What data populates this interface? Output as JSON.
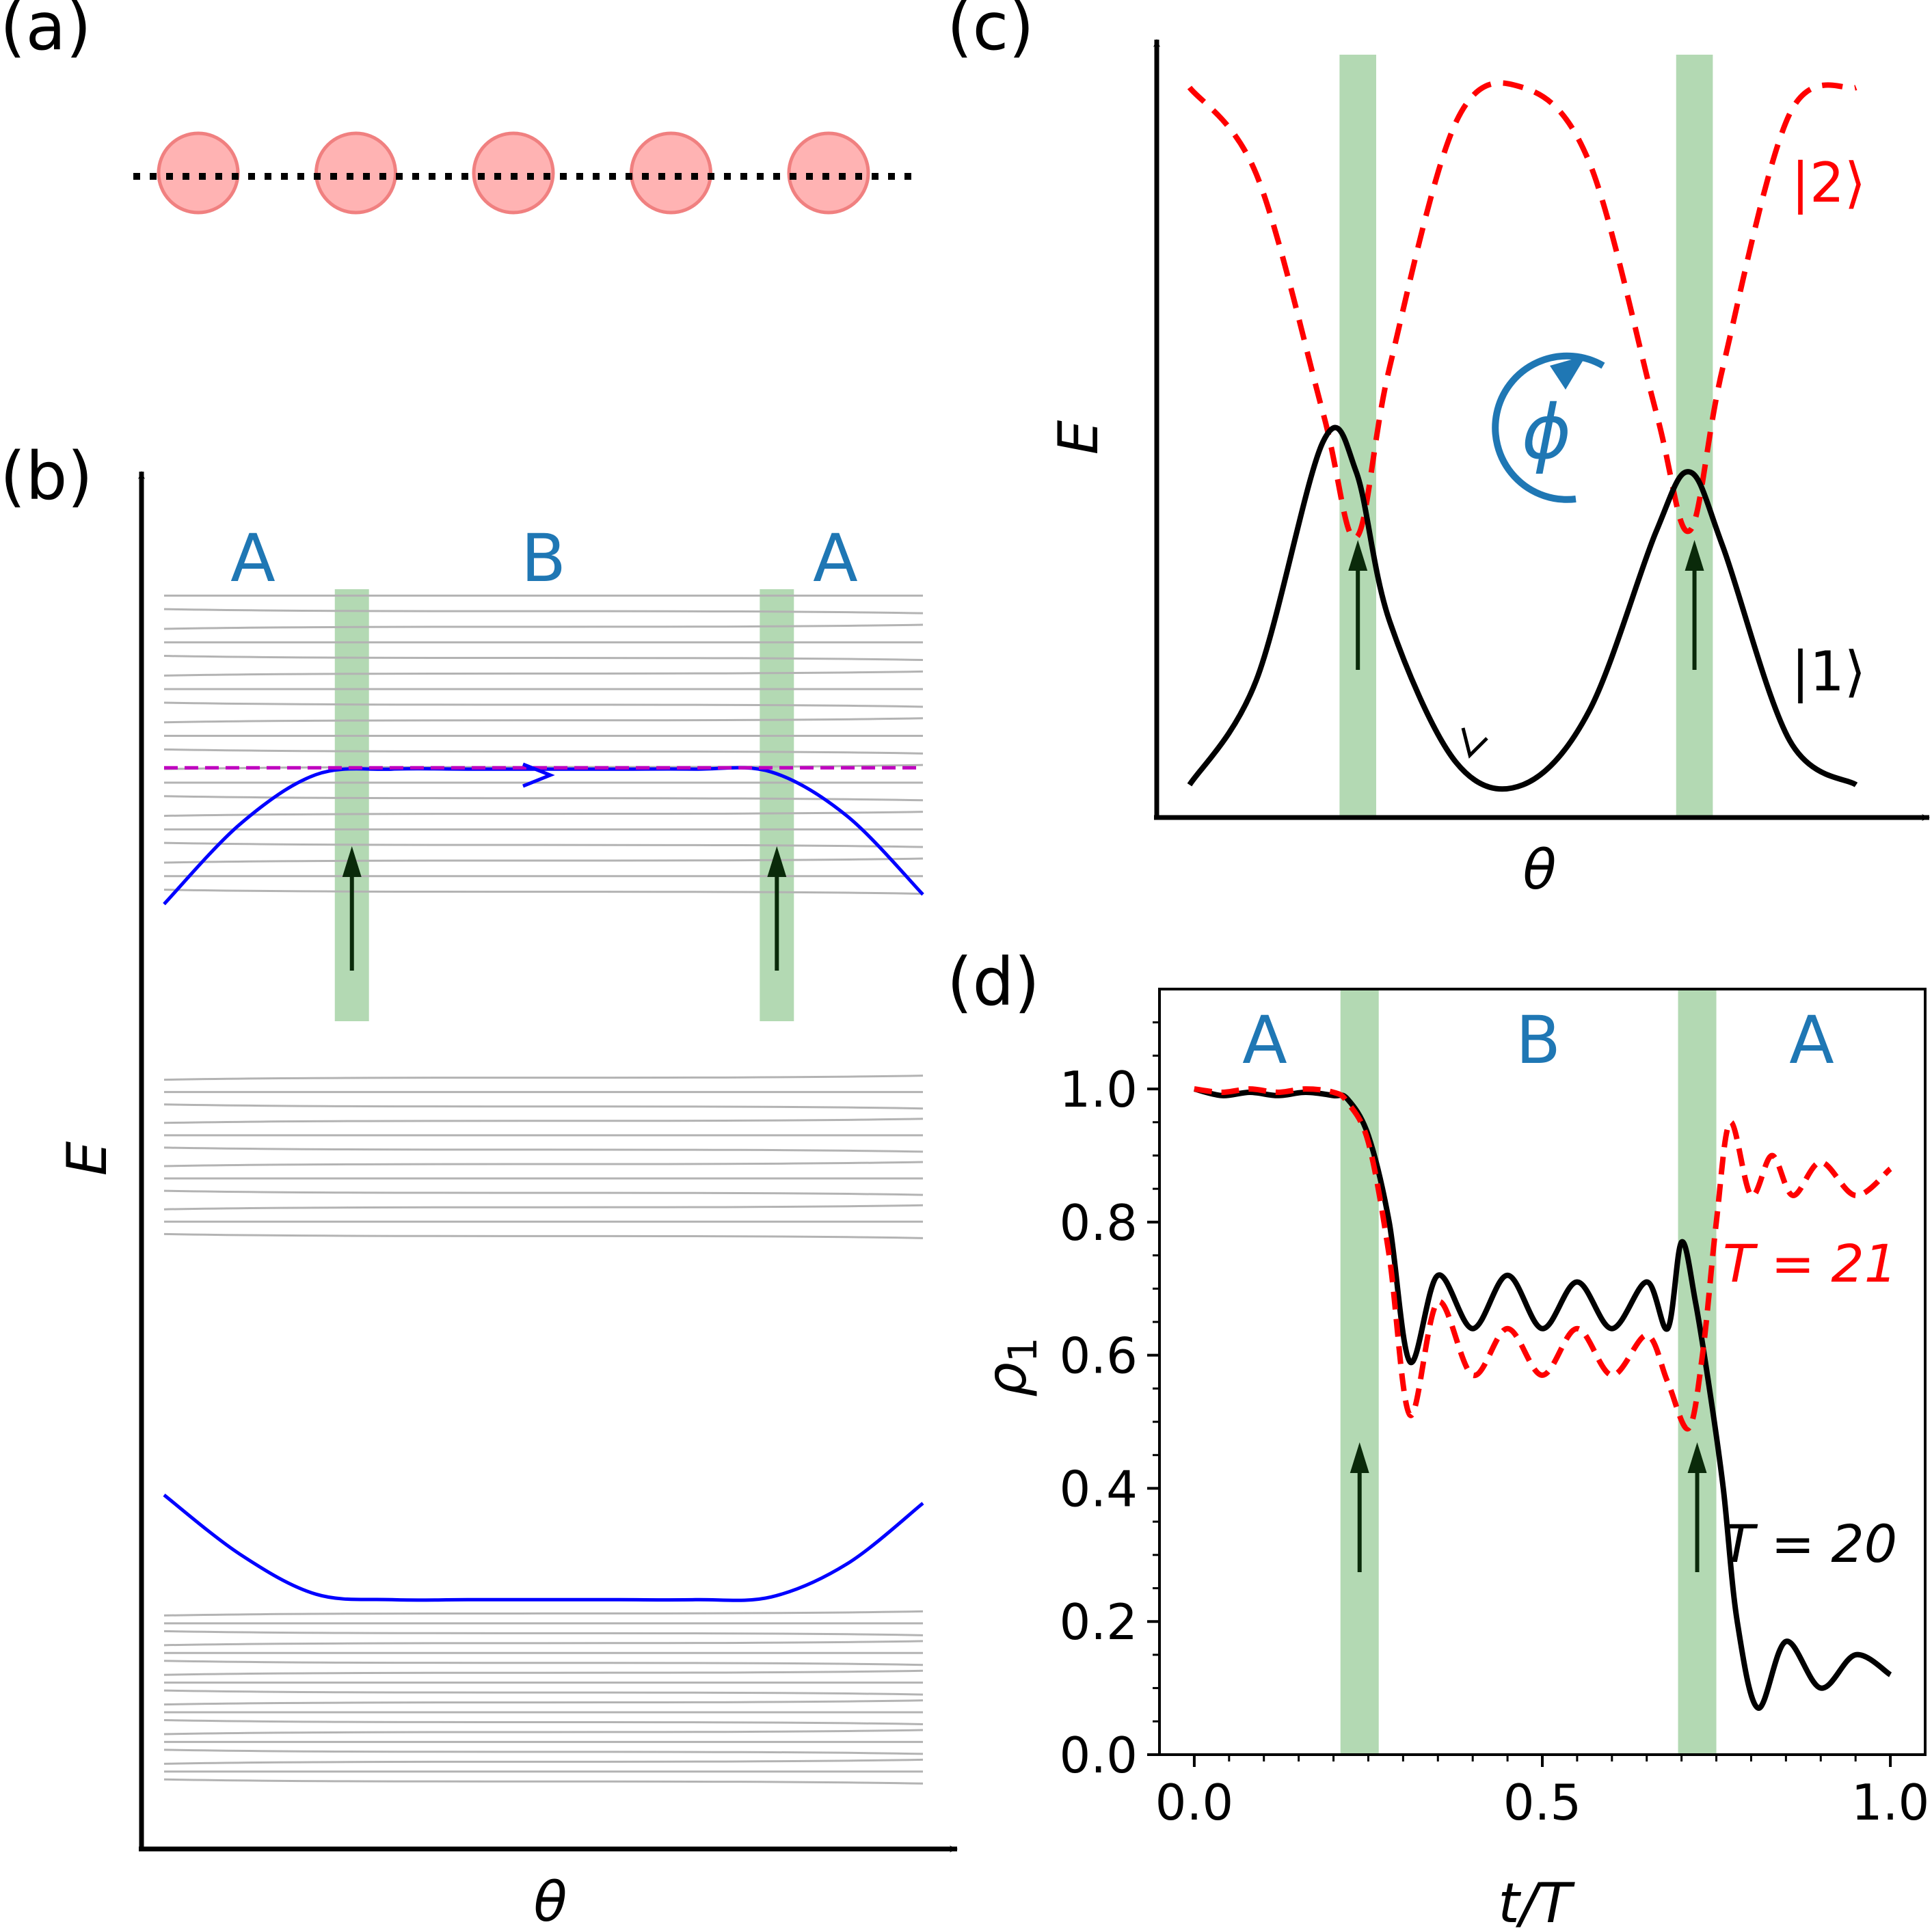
{
  "colors": {
    "blue": "#1f77b4",
    "red": "#ff0000",
    "black": "#000000",
    "green": "#b3d9b3",
    "gray": "#b3b3b3",
    "line_blue": "#0000ff",
    "magenta": "#bf00bf",
    "atom": "#ffb3b3",
    "atom_edge": "#f08080",
    "arrow_dark": "#0a2a0a"
  },
  "panels": {
    "a": {
      "label": "(a)"
    },
    "b": {
      "label": "(b)",
      "ylabel": "E",
      "xlabel": "θ",
      "region_labels": [
        "A",
        "B",
        "A"
      ]
    },
    "c": {
      "label": "(c)",
      "ylabel": "E",
      "xlabel": "θ",
      "state_upper": "|2⟩",
      "state_lower": "|1⟩",
      "phase_symbol": "ϕ"
    },
    "d": {
      "label": "(d)",
      "ylabel": "ρ",
      "ylabel_sub": "1",
      "xlabel": "t/T",
      "region_labels": [
        "A",
        "B",
        "A"
      ],
      "legend_red": "T = 21",
      "legend_black": "T = 20"
    }
  },
  "chart_data": [
    {
      "panel": "a",
      "type": "scatter",
      "title": "five-site chain",
      "points": [
        1,
        2,
        3,
        4,
        5
      ]
    },
    {
      "panel": "b",
      "type": "line",
      "xlabel": "θ",
      "ylabel": "E",
      "xlim": [
        0,
        1
      ],
      "ylim": [
        0,
        1
      ],
      "bands": [
        {
          "name": "upper gray levels",
          "count": 20,
          "range": [
            0.695,
            0.91
          ]
        },
        {
          "name": "middle gray levels",
          "count": 12,
          "range": [
            0.445,
            0.56
          ]
        },
        {
          "name": "lower gray levels",
          "count": 18,
          "range": [
            0.049,
            0.171
          ]
        }
      ],
      "series": [
        {
          "name": "upper blue",
          "x": [
            0,
            0.1,
            0.2,
            0.3,
            0.4,
            0.5,
            0.6,
            0.7,
            0.8,
            0.9,
            1.0
          ],
          "y": [
            0.686,
            0.744,
            0.78,
            0.784,
            0.784,
            0.784,
            0.784,
            0.784,
            0.782,
            0.75,
            0.693
          ]
        },
        {
          "name": "lower blue",
          "x": [
            0,
            0.1,
            0.2,
            0.3,
            0.4,
            0.5,
            0.6,
            0.7,
            0.8,
            0.9,
            1.0
          ],
          "y": [
            0.257,
            0.214,
            0.185,
            0.181,
            0.181,
            0.181,
            0.181,
            0.181,
            0.183,
            0.207,
            0.251
          ]
        },
        {
          "name": "magenta dashed",
          "x": [
            0,
            1
          ],
          "y": [
            0.785,
            0.785
          ]
        }
      ],
      "shaded_intervals": [
        [
          0.225,
          0.27
        ],
        [
          0.785,
          0.83
        ]
      ],
      "annotations": [
        "A",
        "B",
        "A"
      ]
    },
    {
      "panel": "c",
      "type": "line",
      "xlabel": "θ",
      "ylabel": "E",
      "xlim": [
        0,
        1
      ],
      "ylim": [
        0,
        1
      ],
      "series": [
        {
          "name": "|2⟩",
          "style": "dashed",
          "x": [
            0,
            0.1,
            0.2,
            0.25,
            0.3,
            0.4,
            0.5,
            0.6,
            0.7,
            0.75,
            0.8,
            0.9,
            1.0
          ],
          "y": [
            0.956,
            0.84,
            0.52,
            0.352,
            0.58,
            0.91,
            0.956,
            0.855,
            0.52,
            0.361,
            0.58,
            0.92,
            0.956
          ]
        },
        {
          "name": "|1⟩",
          "style": "solid",
          "x": [
            0,
            0.1,
            0.2,
            0.25,
            0.3,
            0.4,
            0.5,
            0.6,
            0.7,
            0.75,
            0.8,
            0.9,
            1.0
          ],
          "y": [
            0.02,
            0.16,
            0.48,
            0.44,
            0.24,
            0.05,
            0.02,
            0.12,
            0.36,
            0.44,
            0.34,
            0.08,
            0.02
          ]
        }
      ],
      "shaded_intervals": [
        [
          0.225,
          0.28
        ],
        [
          0.73,
          0.785
        ]
      ]
    },
    {
      "panel": "d",
      "type": "line",
      "xlabel": "t/T",
      "ylabel": "ρ1",
      "xlim": [
        -0.05,
        1.05
      ],
      "ylim": [
        0,
        1.15
      ],
      "xticks": [
        0.0,
        0.5,
        1.0
      ],
      "xtick_labels": [
        "0.0",
        "0.5",
        "1.0"
      ],
      "yticks": [
        0.0,
        0.2,
        0.4,
        0.6,
        0.8,
        1.0
      ],
      "ytick_labels": [
        "0.0",
        "0.2",
        "0.4",
        "0.6",
        "0.8",
        "1.0"
      ],
      "shaded_intervals": [
        [
          0.21,
          0.265
        ],
        [
          0.695,
          0.75
        ]
      ],
      "series": [
        {
          "name": "T = 20",
          "style": "solid",
          "x": [
            0.0,
            0.04,
            0.08,
            0.12,
            0.16,
            0.2,
            0.22,
            0.25,
            0.28,
            0.31,
            0.35,
            0.4,
            0.45,
            0.5,
            0.55,
            0.6,
            0.65,
            0.68,
            0.7,
            0.72,
            0.74,
            0.76,
            0.78,
            0.81,
            0.85,
            0.9,
            0.95,
            1.0
          ],
          "y": [
            1.0,
            0.99,
            0.995,
            0.99,
            0.995,
            0.99,
            0.985,
            0.93,
            0.8,
            0.59,
            0.72,
            0.64,
            0.72,
            0.64,
            0.71,
            0.64,
            0.71,
            0.64,
            0.77,
            0.68,
            0.55,
            0.4,
            0.2,
            0.07,
            0.17,
            0.1,
            0.15,
            0.12
          ]
        },
        {
          "name": "T = 21",
          "style": "dashed",
          "x": [
            0.0,
            0.04,
            0.08,
            0.12,
            0.16,
            0.2,
            0.22,
            0.25,
            0.28,
            0.31,
            0.35,
            0.4,
            0.45,
            0.5,
            0.55,
            0.6,
            0.65,
            0.68,
            0.71,
            0.73,
            0.75,
            0.77,
            0.8,
            0.83,
            0.86,
            0.9,
            0.95,
            1.0
          ],
          "y": [
            1.0,
            0.995,
            1.0,
            0.995,
            1.0,
            0.995,
            0.98,
            0.92,
            0.75,
            0.51,
            0.68,
            0.57,
            0.64,
            0.57,
            0.64,
            0.57,
            0.63,
            0.56,
            0.49,
            0.6,
            0.8,
            0.95,
            0.84,
            0.9,
            0.84,
            0.89,
            0.84,
            0.88
          ]
        }
      ],
      "annotations": [
        "A",
        "B",
        "A"
      ]
    }
  ]
}
